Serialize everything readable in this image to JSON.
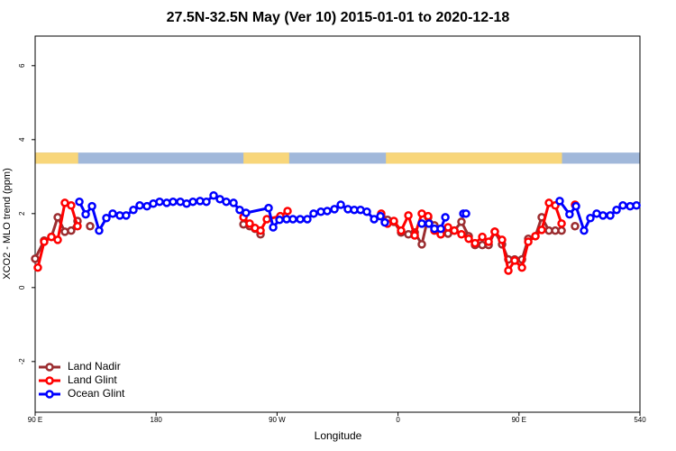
{
  "chart_data": {
    "type": "line",
    "title": "27.5N-32.5N May (Ver 10)   2015-01-01 to 2020-12-18",
    "xlabel": "Longitude",
    "ylabel": "XCO2 - MLO trend (ppm)",
    "xlim": [
      90,
      540
    ],
    "ylim": [
      -3.37,
      6.8
    ],
    "xticks": [
      {
        "value": 90,
        "label": "90 E"
      },
      180,
      {
        "value": 270,
        "label": "90 W"
      },
      {
        "value": 360,
        "label": "0"
      },
      {
        "value": 450,
        "label": "90 E"
      },
      540
    ],
    "yticks": [
      -2,
      0,
      2,
      4,
      6
    ],
    "legend": "bottomleft",
    "land_bands": [
      [
        90,
        122
      ],
      [
        245,
        279
      ],
      [
        351,
        482
      ]
    ],
    "band_ylim": [
      3.35,
      3.65
    ],
    "land_color": "#f8d67a",
    "ocean_color": "#a1b8da",
    "series": [
      {
        "name": "Land Nadir",
        "color": "#9b2d30",
        "x": [
          90,
          96.7,
          102.1,
          106.8,
          112.1,
          116.8,
          121.5,
          null,
          130.9,
          null,
          245,
          249.6,
          253.6,
          257.7,
          null,
          347.5,
          352.2,
          356.9,
          362.3,
          367.7,
          372.4,
          377.7,
          382.4,
          387.1,
          391.8,
          397.2,
          401.9,
          407.2,
          412.6,
          417.3,
          422.7,
          427.4,
          432,
          437.4,
          442.1,
          446.8,
          452.2,
          456.9,
          462.2,
          466.9,
          472.3,
          477,
          481.7,
          null,
          491.7
        ],
        "values": [
          0.78,
          1.27,
          1.37,
          1.9,
          1.51,
          1.54,
          1.8,
          null,
          1.66,
          null,
          1.71,
          1.66,
          1.59,
          1.44,
          null,
          1.93,
          1.83,
          1.78,
          1.49,
          1.44,
          1.49,
          1.17,
          1.9,
          1.68,
          1.44,
          1.46,
          1.54,
          1.78,
          1.39,
          1.15,
          1.15,
          1.15,
          1.51,
          1.17,
          0.76,
          0.76,
          0.76,
          1.32,
          1.39,
          1.9,
          1.54,
          1.54,
          1.54,
          null,
          1.66
        ]
      },
      {
        "name": "Land Glint",
        "color": "#ff0000",
        "x": [
          92,
          96.7,
          102.1,
          106.8,
          112.1,
          116.8,
          121.5,
          null,
          245,
          249.6,
          253.6,
          257.7,
          262.4,
          272.4,
          277.8,
          null,
          347.5,
          352.2,
          356.9,
          362.3,
          367.7,
          372.4,
          377.7,
          382.4,
          387.1,
          391.8,
          397.2,
          401.9,
          407.2,
          412.6,
          417.3,
          422.7,
          427.4,
          432,
          437.4,
          442.1,
          446.8,
          452.2,
          456.9,
          462.2,
          466.9,
          472.3,
          477,
          481.7,
          null,
          491.7
        ],
        "values": [
          0.54,
          1.24,
          1.37,
          1.29,
          2.29,
          2.22,
          1.66,
          null,
          1.9,
          1.73,
          1.61,
          1.54,
          1.85,
          1.93,
          2.07,
          null,
          2.0,
          1.73,
          1.8,
          1.54,
          1.95,
          1.41,
          2.0,
          1.93,
          1.54,
          1.44,
          1.63,
          1.54,
          1.44,
          1.32,
          1.2,
          1.37,
          1.24,
          1.51,
          1.29,
          0.46,
          0.73,
          0.54,
          1.24,
          1.39,
          1.56,
          2.29,
          2.22,
          1.73,
          null,
          2.24
        ]
      },
      {
        "name": "Ocean Glint",
        "color": "#0000ff",
        "x": [
          122.9,
          127.6,
          132.3,
          137.6,
          143,
          147.7,
          153,
          157.7,
          163.1,
          167.8,
          173.2,
          177.9,
          182.6,
          187.9,
          192.6,
          198,
          202.7,
          207.4,
          212.7,
          217.4,
          222.8,
          227.5,
          232.2,
          237.6,
          242.2,
          246.9,
          263.7,
          267.1,
          271.8,
          277.1,
          281.8,
          287.2,
          292.5,
          297.2,
          302.6,
          307.3,
          312.7,
          317.4,
          322.7,
          327.4,
          332.1,
          336.8,
          342.2,
          346.9,
          350.2,
          null,
          377.7,
          383,
          387.1,
          391.8,
          395.2,
          null,
          408.6,
          410.6,
          null,
          480.3,
          487.6,
          492.4,
          498.4,
          503.1,
          507.8,
          512.5,
          517.9,
          522.6,
          527.3,
          532.7,
          537.4
        ],
        "values": [
          2.32,
          1.98,
          2.2,
          1.54,
          1.88,
          2.0,
          1.95,
          1.95,
          2.1,
          2.22,
          2.2,
          2.27,
          2.32,
          2.29,
          2.32,
          2.32,
          2.27,
          2.32,
          2.34,
          2.32,
          2.49,
          2.39,
          2.32,
          2.29,
          2.1,
          2.02,
          2.15,
          1.63,
          1.83,
          1.85,
          1.85,
          1.85,
          1.85,
          2.0,
          2.05,
          2.07,
          2.12,
          2.24,
          2.12,
          2.1,
          2.1,
          2.05,
          1.85,
          1.93,
          1.76,
          null,
          1.73,
          1.73,
          1.59,
          1.59,
          1.9,
          null,
          2.0,
          2.0,
          null,
          2.34,
          1.98,
          2.2,
          1.54,
          1.88,
          2.0,
          1.95,
          1.95,
          2.1,
          2.22,
          2.2,
          2.22
        ]
      }
    ]
  }
}
